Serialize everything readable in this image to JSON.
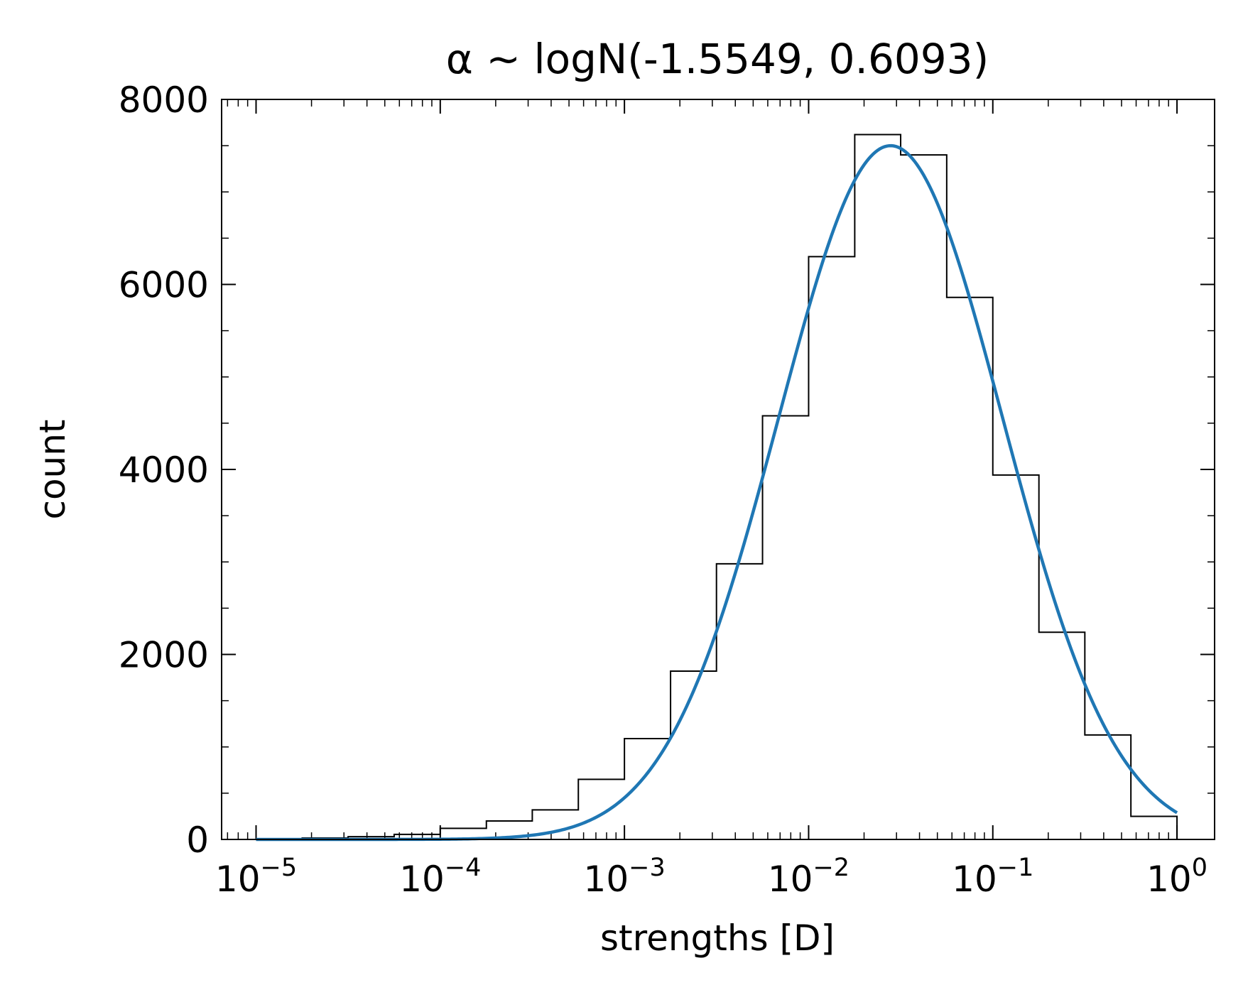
{
  "chart_data": {
    "type": "histogram",
    "title": "α ~ logN(-1.5549, 0.6093)",
    "xlabel": "strengths [D]",
    "ylabel": "count",
    "x_scale": "log",
    "xlim": [
      6.5e-06,
      1.6
    ],
    "ylim": [
      0,
      8000
    ],
    "x_ticks": [
      {
        "value": 1e-05,
        "base": "10",
        "exp": "−5"
      },
      {
        "value": 0.0001,
        "base": "10",
        "exp": "−4"
      },
      {
        "value": 0.001,
        "base": "10",
        "exp": "−3"
      },
      {
        "value": 0.01,
        "base": "10",
        "exp": "−2"
      },
      {
        "value": 0.1,
        "base": "10",
        "exp": "−1"
      },
      {
        "value": 1,
        "base": "10",
        "exp": "0"
      }
    ],
    "y_ticks": [
      {
        "value": 0,
        "label": "0"
      },
      {
        "value": 2000,
        "label": "2000"
      },
      {
        "value": 4000,
        "label": "4000"
      },
      {
        "value": 6000,
        "label": "6000"
      },
      {
        "value": 8000,
        "label": "8000"
      }
    ],
    "grid": false,
    "bin_edges": [
      1e-05,
      1.78e-05,
      3.16e-05,
      5.62e-05,
      0.0001,
      0.000178,
      0.000316,
      0.000562,
      0.001,
      0.00178,
      0.00316,
      0.00562,
      0.01,
      0.0178,
      0.0316,
      0.0562,
      0.1,
      0.178,
      0.316,
      0.562,
      1
    ],
    "counts": [
      5,
      15,
      30,
      55,
      120,
      200,
      320,
      650,
      1090,
      1820,
      2980,
      4580,
      6300,
      7620,
      7400,
      5860,
      3940,
      2240,
      1130,
      250
    ],
    "histogram_color": "#000000",
    "fit_curve": {
      "distribution": "lognormal",
      "mu_log10": -1.5549,
      "sigma_log10": 0.6093,
      "peak": 7500,
      "x_range": [
        1e-05,
        1
      ],
      "color": "#1f77b4"
    }
  }
}
